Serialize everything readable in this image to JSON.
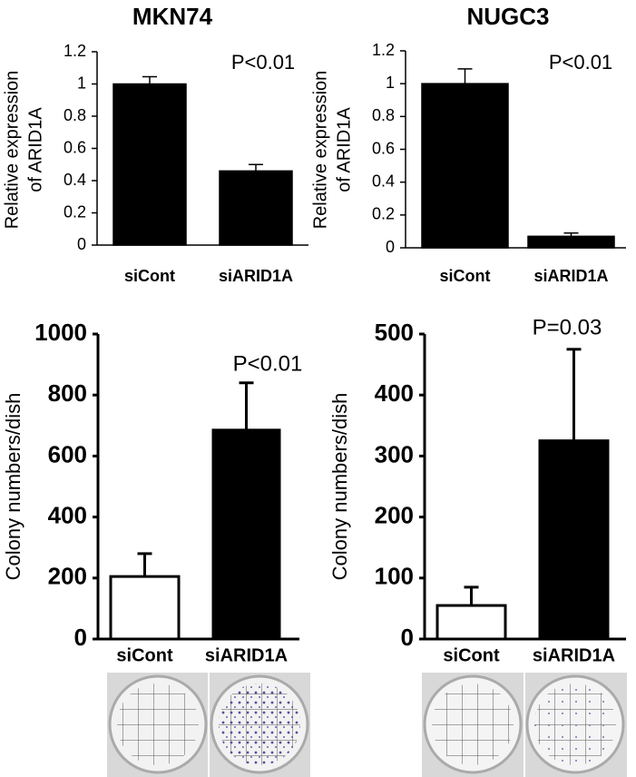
{
  "chart_data": [
    {
      "type": "bar",
      "title": "MKN74",
      "ylabel": [
        "Relative expression",
        "of ARID1A"
      ],
      "annotation": "P<0.01",
      "categories": [
        "siCont",
        "siARID1A"
      ],
      "series": [
        {
          "values": [
            1.0,
            0.46
          ],
          "errors": [
            0.045,
            0.04
          ],
          "colors": [
            "#000000",
            "#000000"
          ]
        }
      ],
      "ylim": [
        0,
        1.2
      ],
      "yticks": [
        0,
        0.2,
        0.4,
        0.6,
        0.8,
        1,
        1.2
      ]
    },
    {
      "type": "bar",
      "title": "NUGC3",
      "ylabel": [
        "Relative expression",
        "of ARID1A"
      ],
      "annotation": "P<0.01",
      "categories": [
        "siCont",
        "siARID1A"
      ],
      "series": [
        {
          "values": [
            1.0,
            0.07
          ],
          "errors": [
            0.09,
            0.02
          ],
          "colors": [
            "#000000",
            "#000000"
          ]
        }
      ],
      "ylim": [
        0,
        1.2
      ],
      "yticks": [
        0,
        0.2,
        0.4,
        0.6,
        0.8,
        1,
        1.2
      ]
    },
    {
      "type": "bar",
      "ylabel": [
        "Colony numbers/dish"
      ],
      "annotation": "P<0.01",
      "categories": [
        "siCont",
        "siARID1A"
      ],
      "series": [
        {
          "values": [
            205,
            685
          ],
          "errors": [
            75,
            155
          ],
          "colors": [
            "#ffffff",
            "#000000"
          ]
        }
      ],
      "ylim": [
        0,
        1000
      ],
      "yticks": [
        0,
        200,
        400,
        600,
        800,
        1000
      ]
    },
    {
      "type": "bar",
      "ylabel": [
        "Colony numbers/dish"
      ],
      "annotation": "P=0.03",
      "categories": [
        "siCont",
        "siARID1A"
      ],
      "series": [
        {
          "values": [
            55,
            325
          ],
          "errors": [
            30,
            150
          ],
          "colors": [
            "#ffffff",
            "#000000"
          ]
        }
      ],
      "ylim": [
        0,
        500
      ],
      "yticks": [
        0,
        100,
        200,
        300,
        400,
        500
      ]
    }
  ]
}
